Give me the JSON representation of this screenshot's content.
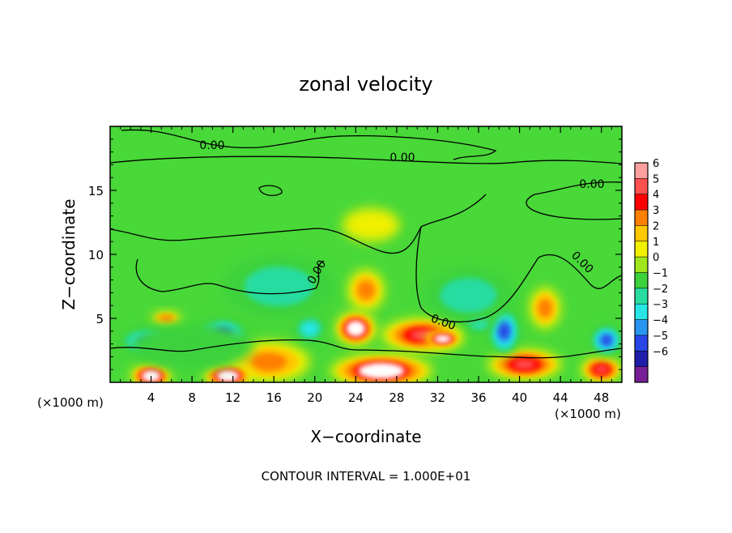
{
  "chart_data": {
    "type": "heatmap",
    "title": "zonal velocity",
    "xlabel": "X−coordinate",
    "ylabel": "Z−coordinate",
    "x_unit_left": "(×1000 m)",
    "x_unit_right": "(×1000 m)",
    "footer": "CONTOUR INTERVAL = 1.000E+01",
    "xlim": [
      0,
      50
    ],
    "ylim": [
      0,
      20
    ],
    "x_ticks": [
      4,
      8,
      12,
      16,
      20,
      24,
      28,
      32,
      36,
      40,
      44,
      48
    ],
    "x_tick_labels": [
      "4",
      "8",
      "12",
      "16",
      "20",
      "24",
      "28",
      "32",
      "36",
      "40",
      "44",
      "48"
    ],
    "y_ticks": [
      5,
      10,
      15
    ],
    "y_tick_labels": [
      "5",
      "10",
      "15"
    ],
    "contour_labels": [
      "0.00",
      "0.00",
      "0.00",
      "0.00",
      "0.00",
      "0.00"
    ],
    "colorbar": {
      "levels": [
        6,
        5,
        4,
        3,
        2,
        1,
        0,
        -1,
        -2,
        -3,
        -4,
        -5,
        -6
      ],
      "labels": [
        "6",
        "5",
        "4",
        "3",
        "2",
        "1",
        "0",
        "−1",
        "−2",
        "−3",
        "−4",
        "−5",
        "−6"
      ],
      "colors": [
        "#ffa0a0",
        "#ff5050",
        "#ff0000",
        "#ff8000",
        "#ffc800",
        "#f0f000",
        "#a0e61e",
        "#3cd23c",
        "#28dca0",
        "#28e6e6",
        "#2896f0",
        "#2846e6",
        "#1e1eaa",
        "#781e96"
      ]
    },
    "features": [
      {
        "kind": "positive",
        "x": 25.0,
        "z": 7.2,
        "rx": 1.8,
        "rz": 1.6,
        "level": 3
      },
      {
        "kind": "positive",
        "x": 24.0,
        "z": 4.2,
        "rx": 2.0,
        "rz": 1.3,
        "level": 6
      },
      {
        "kind": "positive",
        "x": 30.5,
        "z": 3.7,
        "rx": 4.0,
        "rz": 1.3,
        "level": 5
      },
      {
        "kind": "positive",
        "x": 32.5,
        "z": 3.4,
        "rx": 1.8,
        "rz": 0.6,
        "level": 6
      },
      {
        "kind": "positive",
        "x": 40.5,
        "z": 1.4,
        "rx": 3.6,
        "rz": 1.2,
        "level": 5
      },
      {
        "kind": "positive",
        "x": 42.5,
        "z": 5.8,
        "rx": 1.5,
        "rz": 1.6,
        "level": 3
      },
      {
        "kind": "positive",
        "x": 15.5,
        "z": 1.6,
        "rx": 4.0,
        "rz": 1.6,
        "level": 3
      },
      {
        "kind": "positive",
        "x": 11.5,
        "z": 0.5,
        "rx": 2.4,
        "rz": 0.9,
        "level": 6
      },
      {
        "kind": "positive",
        "x": 4.0,
        "z": 0.5,
        "rx": 2.0,
        "rz": 0.9,
        "level": 6
      },
      {
        "kind": "positive",
        "x": 48.0,
        "z": 1.0,
        "rx": 2.0,
        "rz": 1.0,
        "level": 5
      },
      {
        "kind": "positive",
        "x": 26.5,
        "z": 0.9,
        "rx": 5.0,
        "rz": 1.3,
        "level": 6
      },
      {
        "kind": "positive",
        "x": 5.5,
        "z": 5.0,
        "rx": 1.5,
        "rz": 0.5,
        "level": 3
      },
      {
        "kind": "positive",
        "x": 25.5,
        "z": 12.3,
        "rx": 2.8,
        "rz": 1.3,
        "level": 1
      },
      {
        "kind": "negative",
        "x": 3.5,
        "z": 3.2,
        "rx": 2.6,
        "rz": 1.1,
        "level": -4
      },
      {
        "kind": "negative",
        "x": 11.0,
        "z": 3.8,
        "rx": 2.4,
        "rz": 1.2,
        "level": -5
      },
      {
        "kind": "negative",
        "x": 38.5,
        "z": 4.0,
        "rx": 1.6,
        "rz": 1.9,
        "level": -5
      },
      {
        "kind": "negative",
        "x": 48.5,
        "z": 3.3,
        "rx": 1.6,
        "rz": 1.2,
        "level": -5
      },
      {
        "kind": "negative",
        "x": 19.5,
        "z": 4.2,
        "rx": 1.6,
        "rz": 1.1,
        "level": -3
      },
      {
        "kind": "negative",
        "x": 36.0,
        "z": 4.8,
        "rx": 1.5,
        "rz": 1.0,
        "level": -3
      },
      {
        "kind": "negative",
        "x": 16.5,
        "z": 7.5,
        "rx": 5.5,
        "rz": 2.5,
        "level": -2
      },
      {
        "kind": "negative",
        "x": 35.0,
        "z": 6.8,
        "rx": 4.5,
        "rz": 2.2,
        "level": -2
      },
      {
        "kind": "negative",
        "x": 8.0,
        "z": 2.8,
        "rx": 6.0,
        "rz": 1.8,
        "level": -1
      }
    ]
  }
}
